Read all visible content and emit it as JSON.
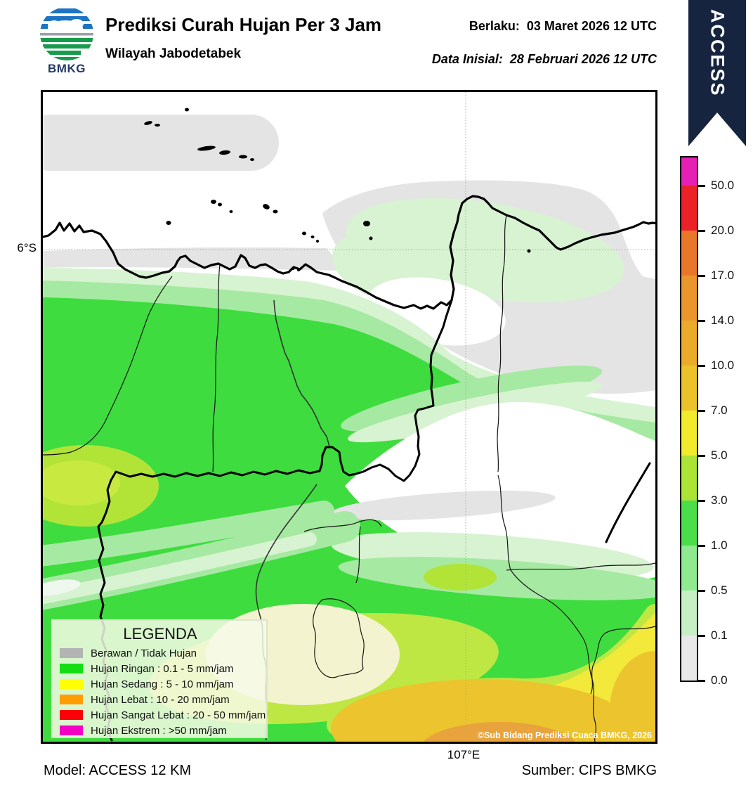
{
  "header": {
    "title": "Prediksi Curah Hujan Per 3 Jam",
    "subtitle": "Wilayah Jabodetabek",
    "valid_label": "Berlaku:",
    "valid_value": "03 Maret 2026 12 UTC",
    "initial_label": "Data Inisial:",
    "initial_value": "28 Februari 2026 12 UTC",
    "logo_text": "BMKG",
    "ribbon_text": "ACCESS",
    "ribbon_color": "#162440"
  },
  "map": {
    "lat_tick": "6°S",
    "lon_tick": "107°E",
    "copyright": "©Sub Bidang Prediksi Cuaca BMKG, 2026"
  },
  "legend": {
    "title": "LEGENDA",
    "items": [
      {
        "label": "Berawan / Tidak Hujan",
        "color": "#b3b3b3"
      },
      {
        "label": "Hujan Ringan : 0.1 - 5 mm/jam",
        "color": "#14dd14"
      },
      {
        "label": "Hujan Sedang : 5 - 10 mm/jam",
        "color": "#ffff00"
      },
      {
        "label": "Hujan Lebat : 10 - 20 mm/jam",
        "color": "#ff9d00"
      },
      {
        "label": "Hujan Sangat Lebat : 20 - 50 mm/jam",
        "color": "#fb0007"
      },
      {
        "label": "Hujan Ekstrem : >50 mm/jam",
        "color": "#f400c4"
      }
    ]
  },
  "colorbar": {
    "tick_labels_top_to_bottom": [
      "50.0",
      "20.0",
      "17.0",
      "14.0",
      "10.0",
      "7.0",
      "5.0",
      "3.0",
      "1.0",
      "0.5",
      "0.1",
      "0.0"
    ],
    "segments_top_to_bottom": [
      {
        "range": ">50.0",
        "color": "#e620b4"
      },
      {
        "range": "20.0-50.0",
        "color": "#eb2127"
      },
      {
        "range": "17.0-20.0",
        "color": "#e8772b"
      },
      {
        "range": "14.0-17.0",
        "color": "#ea962c"
      },
      {
        "range": "10.0-14.0",
        "color": "#ebab2a"
      },
      {
        "range": "7.0-10.0",
        "color": "#ecc22a"
      },
      {
        "range": "5.0-7.0",
        "color": "#f1ea2d"
      },
      {
        "range": "3.0-5.0",
        "color": "#abe336"
      },
      {
        "range": "1.0-3.0",
        "color": "#4ade4a"
      },
      {
        "range": "0.5-1.0",
        "color": "#8fe98f"
      },
      {
        "range": "0.1-0.5",
        "color": "#c6efc6"
      },
      {
        "range": "0.0-0.1",
        "color": "#e8e8e8"
      }
    ]
  },
  "palette": {
    "sea": "#ffffff",
    "cloud_gray": "#e4e4e4",
    "pale_green": "#d7f3d1",
    "light_green": "#a6e9a2",
    "green": "#3edc3e",
    "yellow_green": "#b2e438",
    "yellow_green_soft": "#bfe743",
    "cream": "#f3f3cf",
    "yellow": "#f2e93a",
    "gold": "#ecc42e",
    "orange": "#e8a33c",
    "white_sliver": "#eef8ee"
  },
  "footer": {
    "model": "Model: ACCESS 12 KM",
    "source": "Sumber: CIPS BMKG"
  }
}
